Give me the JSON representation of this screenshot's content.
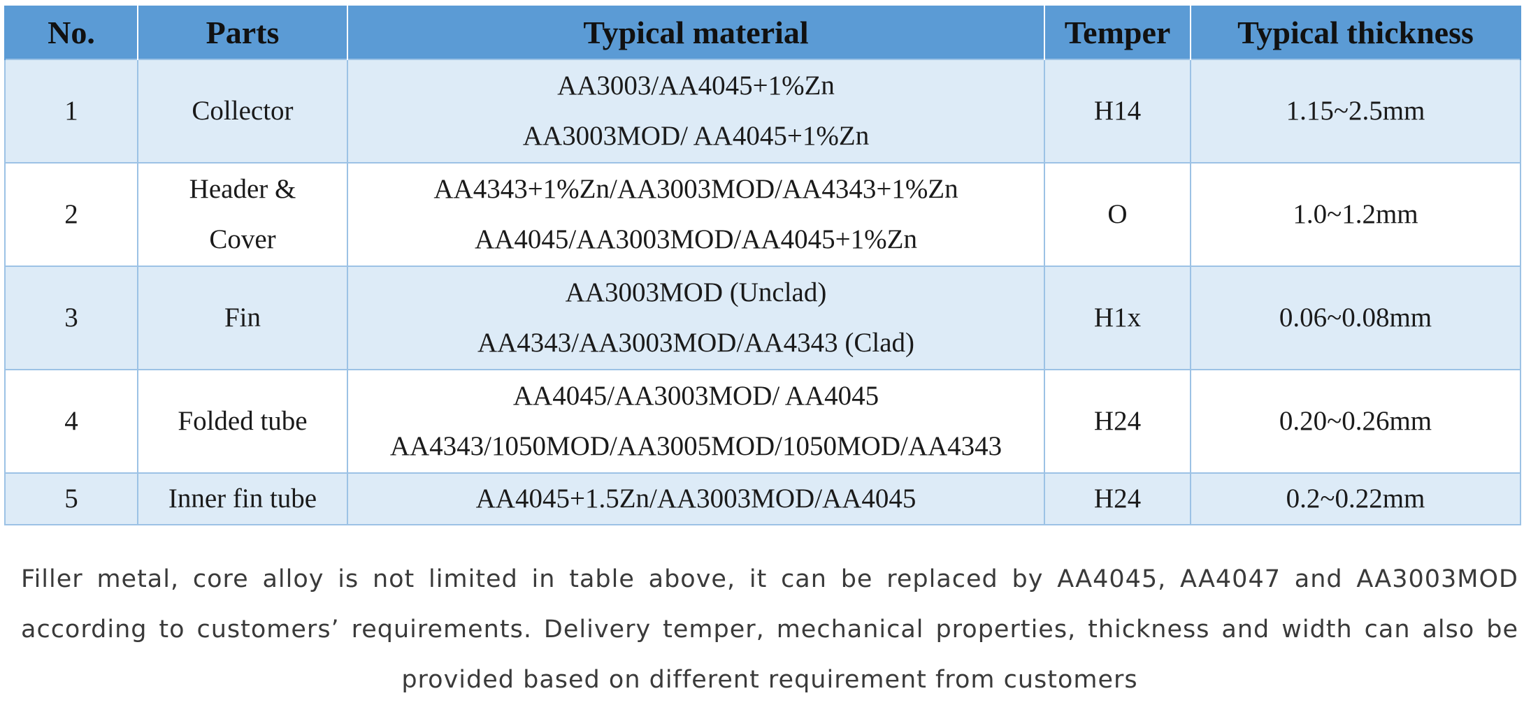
{
  "table": {
    "headers": {
      "no": "No.",
      "parts": "Parts",
      "material": "Typical material",
      "temper": "Temper",
      "thickness": "Typical thickness"
    },
    "rows": [
      {
        "no": "1",
        "parts": [
          "Collector"
        ],
        "material": [
          "AA3003/AA4045+1%Zn",
          "AA3003MOD/ AA4045+1%Zn"
        ],
        "temper": "H14",
        "thickness": "1.15~2.5mm"
      },
      {
        "no": "2",
        "parts": [
          "Header &",
          "Cover"
        ],
        "material": [
          "AA4343+1%Zn/AA3003MOD/AA4343+1%Zn",
          "AA4045/AA3003MOD/AA4045+1%Zn"
        ],
        "temper": "O",
        "thickness": "1.0~1.2mm"
      },
      {
        "no": "3",
        "parts": [
          "Fin"
        ],
        "material": [
          "AA3003MOD (Unclad)",
          "AA4343/AA3003MOD/AA4343 (Clad)"
        ],
        "temper": "H1x",
        "thickness": "0.06~0.08mm"
      },
      {
        "no": "4",
        "parts": [
          "Folded tube"
        ],
        "material": [
          "AA4045/AA3003MOD/ AA4045",
          "AA4343/1050MOD/AA3005MOD/1050MOD/AA4343"
        ],
        "temper": "H24",
        "thickness": "0.20~0.26mm"
      },
      {
        "no": "5",
        "parts": [
          "Inner fin tube"
        ],
        "material": [
          "AA4045+1.5Zn/AA3003MOD/AA4045"
        ],
        "temper": "H24",
        "thickness": "0.2~0.22mm"
      }
    ]
  },
  "note": "Filler metal, core alloy is not limited in table above, it can be replaced by AA4045, AA4047 and AA3003MOD according to customers’ requirements. Delivery temper, mechanical properties, thickness and width can also be provided based on different requirement from customers",
  "colors": {
    "header_bg": "#5b9bd5",
    "shaded_row_bg": "#ddebf7",
    "plain_row_bg": "#ffffff",
    "border": "#9cc2e5"
  }
}
